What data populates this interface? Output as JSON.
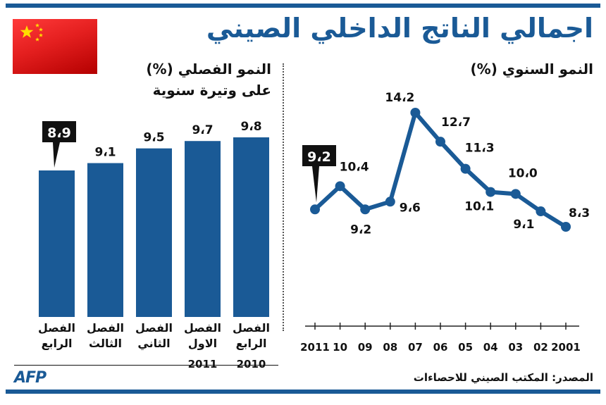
{
  "title": "اجمالي الناتج الداخلي الصيني",
  "source": "المصدر: المكتب الصيني للاحصاءات",
  "logo": "AFP",
  "colors": {
    "primary": "#1a5a96",
    "flag_red": "#e41f1f",
    "flag_star": "#ffde00"
  },
  "chart_data": [
    {
      "type": "line",
      "title": "النمو السنوي (%)",
      "x": [
        "2001",
        "02",
        "03",
        "04",
        "05",
        "06",
        "07",
        "08",
        "09",
        "10",
        "2011"
      ],
      "series": [
        {
          "values": [
            8.3,
            9.1,
            10.0,
            10.1,
            11.3,
            12.7,
            14.2,
            9.6,
            9.2,
            10.4,
            9.2
          ]
        }
      ],
      "value_labels": [
        "8،3",
        "9،1",
        "10،0",
        "10،1",
        "11،3",
        "12،7",
        "14،2",
        "9،6",
        "9،2",
        "10،4",
        "9،2"
      ],
      "highlight_index": 10,
      "ylim": [
        7,
        15
      ],
      "x_direction": "right-to-left"
    },
    {
      "type": "bar",
      "title": "النمو الفصلي (%)",
      "subtitle": "على وتيرة سنوية",
      "categories": [
        "الفصل الرابع",
        "الفصل الاول",
        "الفصل الثاني",
        "الفصل الثالث",
        "الفصل الرابع"
      ],
      "category_lines": [
        [
          "الفصل",
          "الرابع"
        ],
        [
          "الفصل",
          "الاول"
        ],
        [
          "الفصل",
          "الثاني"
        ],
        [
          "الفصل",
          "الثالث"
        ],
        [
          "الفصل",
          "الرابع"
        ]
      ],
      "values": [
        9.8,
        9.7,
        9.5,
        9.1,
        8.9
      ],
      "value_labels": [
        "9،8",
        "9،7",
        "9،5",
        "9،1",
        "8،9"
      ],
      "highlight_index": 4,
      "year_labels": [
        "2010",
        "2011"
      ],
      "ylim": [
        0,
        9.8
      ],
      "x_direction": "right-to-left"
    }
  ]
}
